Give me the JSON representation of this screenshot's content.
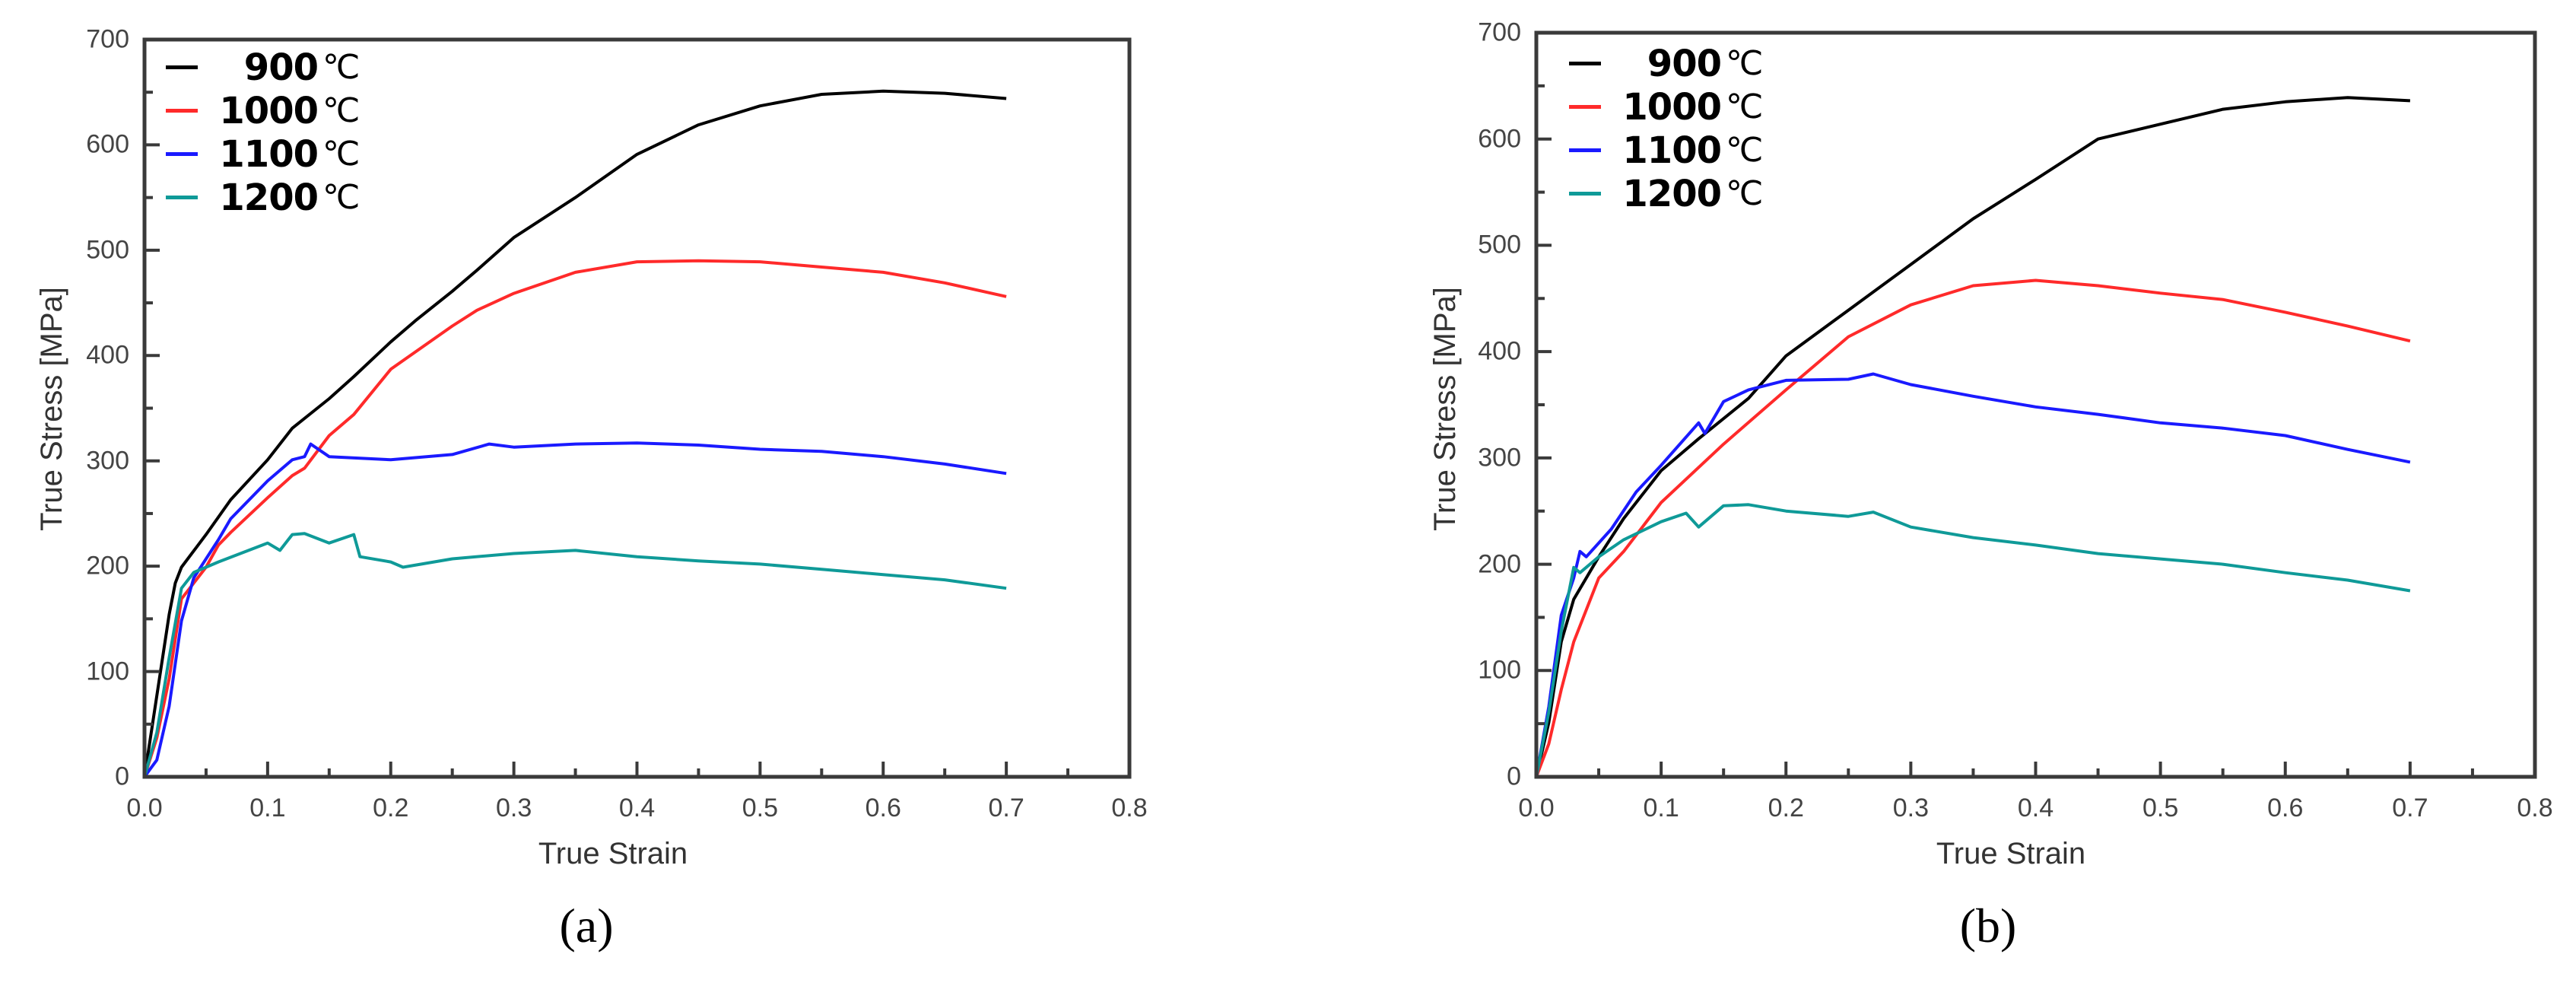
{
  "figure": {
    "panels": [
      {
        "caption": "(a)",
        "xlabel": "True Strain",
        "ylabel": "True Stress [MPa]",
        "xticks": [
          "0.0",
          "0.1",
          "0.2",
          "0.3",
          "0.4",
          "0.5",
          "0.6",
          "0.7",
          "0.8"
        ],
        "yticks": [
          "0",
          "100",
          "200",
          "300",
          "400",
          "500",
          "600",
          "700"
        ],
        "legend": [
          {
            "label": "900",
            "unit": "℃",
            "color": "#000000"
          },
          {
            "label": "1000",
            "unit": "℃",
            "color": "#ff2a2a"
          },
          {
            "label": "1100",
            "unit": "℃",
            "color": "#1a1aff"
          },
          {
            "label": "1200",
            "unit": "℃",
            "color": "#0f9a98"
          }
        ]
      },
      {
        "caption": "(b)",
        "xlabel": "True Strain",
        "ylabel": "True Stress [MPa]",
        "xticks": [
          "0.0",
          "0.1",
          "0.2",
          "0.3",
          "0.4",
          "0.5",
          "0.6",
          "0.7",
          "0.8"
        ],
        "yticks": [
          "0",
          "100",
          "200",
          "300",
          "400",
          "500",
          "600",
          "700"
        ],
        "legend": [
          {
            "label": "900",
            "unit": "℃",
            "color": "#000000"
          },
          {
            "label": "1000",
            "unit": "℃",
            "color": "#ff2a2a"
          },
          {
            "label": "1100",
            "unit": "℃",
            "color": "#1a1aff"
          },
          {
            "label": "1200",
            "unit": "℃",
            "color": "#0f9a98"
          }
        ]
      }
    ]
  },
  "chart_data": [
    {
      "type": "line",
      "title": "(a)",
      "xlabel": "True Strain",
      "ylabel": "True Stress [MPa]",
      "xlim": [
        0,
        0.8
      ],
      "ylim": [
        0,
        700
      ],
      "grid": false,
      "legend_position": "upper left",
      "series": [
        {
          "name": "900 ℃",
          "color": "#000000",
          "x": [
            0,
            0.01,
            0.02,
            0.025,
            0.03,
            0.05,
            0.07,
            0.1,
            0.12,
            0.15,
            0.17,
            0.2,
            0.22,
            0.25,
            0.27,
            0.3,
            0.35,
            0.4,
            0.45,
            0.5,
            0.55,
            0.6,
            0.65,
            0.7
          ],
          "y": [
            0,
            77,
            154,
            184,
            199,
            230,
            263,
            301,
            331,
            359,
            380,
            413,
            433,
            461,
            481,
            512,
            550,
            591,
            619,
            637,
            648,
            651,
            649,
            644
          ]
        },
        {
          "name": "1000 ℃",
          "color": "#ff2a2a",
          "x": [
            0,
            0.01,
            0.02,
            0.03,
            0.04,
            0.05,
            0.06,
            0.07,
            0.1,
            0.12,
            0.13,
            0.15,
            0.17,
            0.2,
            0.25,
            0.27,
            0.3,
            0.35,
            0.4,
            0.45,
            0.5,
            0.55,
            0.6,
            0.65,
            0.7
          ],
          "y": [
            0,
            37,
            93,
            169,
            184,
            199,
            220,
            232,
            265,
            286,
            293,
            324,
            344,
            387,
            428,
            443,
            459,
            479,
            489,
            490,
            489,
            484,
            479,
            469,
            456
          ]
        },
        {
          "name": "1100 ℃",
          "color": "#1a1aff",
          "x": [
            0,
            0.01,
            0.02,
            0.03,
            0.04,
            0.06,
            0.07,
            0.1,
            0.12,
            0.13,
            0.135,
            0.15,
            0.2,
            0.25,
            0.28,
            0.3,
            0.35,
            0.4,
            0.45,
            0.5,
            0.55,
            0.6,
            0.65,
            0.7
          ],
          "y": [
            0,
            16,
            67,
            148,
            189,
            225,
            245,
            281,
            301,
            304,
            316,
            304,
            301,
            306,
            316,
            313,
            316,
            317,
            315,
            311,
            309,
            304,
            297,
            288
          ]
        },
        {
          "name": "1200 ℃",
          "color": "#0f9a98",
          "x": [
            0,
            0.01,
            0.02,
            0.03,
            0.04,
            0.06,
            0.1,
            0.11,
            0.12,
            0.13,
            0.15,
            0.17,
            0.175,
            0.2,
            0.21,
            0.25,
            0.3,
            0.35,
            0.4,
            0.45,
            0.5,
            0.55,
            0.6,
            0.65,
            0.7
          ],
          "y": [
            0,
            42,
            113,
            179,
            194,
            204,
            222,
            215,
            230,
            231,
            222,
            230,
            209,
            204,
            199,
            207,
            212,
            215,
            209,
            205,
            202,
            197,
            192,
            187,
            179
          ]
        }
      ]
    },
    {
      "type": "line",
      "title": "(b)",
      "xlabel": "True Strain",
      "ylabel": "True Stress [MPa]",
      "xlim": [
        0,
        0.8
      ],
      "ylim": [
        0,
        700
      ],
      "grid": false,
      "legend_position": "upper left",
      "series": [
        {
          "name": "900 ℃",
          "color": "#000000",
          "x": [
            0,
            0.01,
            0.02,
            0.03,
            0.05,
            0.07,
            0.1,
            0.13,
            0.17,
            0.2,
            0.25,
            0.3,
            0.35,
            0.4,
            0.45,
            0.5,
            0.55,
            0.6,
            0.65,
            0.7
          ],
          "y": [
            0,
            51,
            127,
            167,
            207,
            243,
            288,
            318,
            356,
            396,
            439,
            482,
            525,
            562,
            600,
            614,
            628,
            635,
            639,
            636
          ]
        },
        {
          "name": "1000 ℃",
          "color": "#ff2a2a",
          "x": [
            0,
            0.01,
            0.02,
            0.03,
            0.05,
            0.07,
            0.1,
            0.15,
            0.2,
            0.25,
            0.3,
            0.35,
            0.4,
            0.45,
            0.5,
            0.55,
            0.6,
            0.65,
            0.7
          ],
          "y": [
            0,
            31,
            82,
            127,
            187,
            212,
            258,
            313,
            364,
            414,
            444,
            462,
            467,
            462,
            455,
            449,
            437,
            424,
            410
          ]
        },
        {
          "name": "1100 ℃",
          "color": "#1a1aff",
          "x": [
            0,
            0.01,
            0.02,
            0.03,
            0.035,
            0.04,
            0.06,
            0.08,
            0.1,
            0.13,
            0.135,
            0.15,
            0.17,
            0.2,
            0.25,
            0.27,
            0.3,
            0.35,
            0.4,
            0.45,
            0.5,
            0.55,
            0.6,
            0.65,
            0.7
          ],
          "y": [
            0,
            66,
            152,
            187,
            212,
            207,
            233,
            268,
            293,
            333,
            323,
            353,
            364,
            373,
            374,
            379,
            369,
            358,
            348,
            341,
            333,
            328,
            321,
            308,
            296
          ]
        },
        {
          "name": "1200 ℃",
          "color": "#0f9a98",
          "x": [
            0,
            0.01,
            0.02,
            0.03,
            0.035,
            0.05,
            0.07,
            0.1,
            0.12,
            0.13,
            0.15,
            0.17,
            0.2,
            0.25,
            0.27,
            0.3,
            0.35,
            0.4,
            0.45,
            0.5,
            0.55,
            0.6,
            0.65,
            0.7
          ],
          "y": [
            0,
            61,
            137,
            197,
            192,
            207,
            223,
            240,
            248,
            235,
            255,
            256,
            250,
            245,
            249,
            235,
            225,
            218,
            210,
            205,
            200,
            192,
            185,
            175
          ]
        }
      ]
    }
  ]
}
